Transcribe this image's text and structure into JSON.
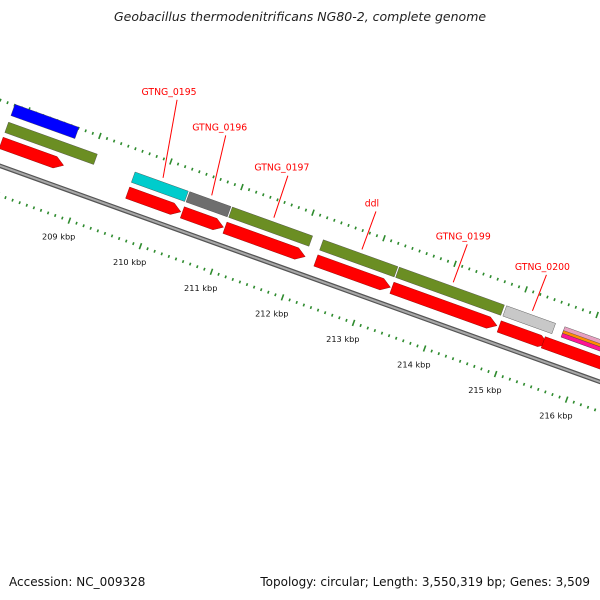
{
  "title": "Geobacillus thermodenitrificans NG80-2, complete genome",
  "accession": "Accession: NC_009328",
  "topology": "Topology: circular; Length: 3,550,319 bp; Genes: 3,509",
  "colors": {
    "cds": "#ff0000",
    "backbone": "#8a8a8a",
    "tick": "#2e8b2e",
    "label": "#ff0000",
    "label_line": "#ff0000",
    "olive": "#6b8e23",
    "cyan": "#00cccc",
    "darkgray": "#6e6e6e",
    "lightgray": "#c8c8c8",
    "blue": "#0000ff",
    "pink": "#ff1493",
    "orange": "#ff8c00"
  },
  "ticks": [
    {
      "label": "209 kbp",
      "kbp": 209
    },
    {
      "label": "210 kbp",
      "kbp": 210
    },
    {
      "label": "211 kbp",
      "kbp": 211
    },
    {
      "label": "212 kbp",
      "kbp": 212
    },
    {
      "label": "213 kbp",
      "kbp": 213
    },
    {
      "label": "214 kbp",
      "kbp": 214
    },
    {
      "label": "215 kbp",
      "kbp": 215
    },
    {
      "label": "216 kbp",
      "kbp": 216
    }
  ],
  "genes": [
    {
      "label": "GTNG_0195",
      "start_kbp": 209.6,
      "end_kbp": 210.35,
      "color": "cyan"
    },
    {
      "label": "GTNG_0196",
      "start_kbp": 210.37,
      "end_kbp": 210.95,
      "color": "darkgray"
    },
    {
      "label": "GTNG_0197",
      "start_kbp": 210.97,
      "end_kbp": 212.1,
      "color": "olive"
    },
    {
      "label": "ddl",
      "start_kbp": 212.25,
      "end_kbp": 213.3,
      "color": "olive"
    },
    {
      "label": "GTNG_0199",
      "start_kbp": 213.32,
      "end_kbp": 214.8,
      "color": "olive"
    },
    {
      "label": "GTNG_0200",
      "start_kbp": 214.83,
      "end_kbp": 215.52,
      "color": "lightgray"
    }
  ],
  "extra_features": [
    {
      "start_kbp": 207.8,
      "end_kbp": 208.7,
      "color": "blue",
      "track": "outer"
    },
    {
      "start_kbp": 207.8,
      "end_kbp": 209.05,
      "color": "olive",
      "track": "inner"
    },
    {
      "start_kbp": 207.8,
      "end_kbp": 208.68,
      "color": "cds",
      "track": "cds"
    }
  ]
}
